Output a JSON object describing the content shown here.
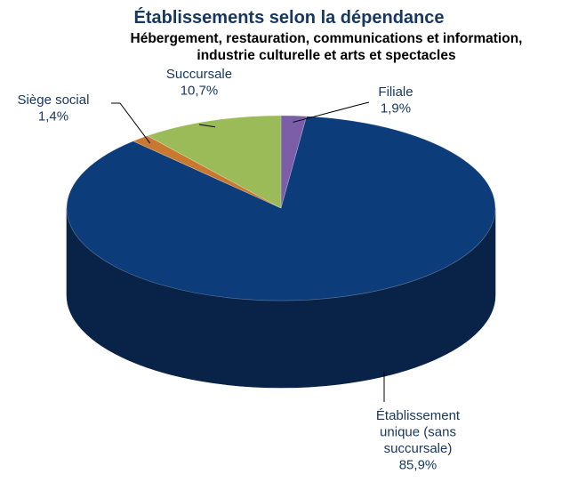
{
  "chart_data": {
    "type": "pie",
    "title": "Établissements selon la dépendance",
    "subtitle_lines": [
      "Hébergement, restauration, communications et information,",
      "industrie culturelle et arts et spectacles"
    ],
    "slices": [
      {
        "name_lines": [
          "Filiale"
        ],
        "value": 1.9,
        "value_label": "1,9%",
        "color": "#7B5EA7",
        "side_color": "#4E3A6E"
      },
      {
        "name_lines": [
          "Établissement",
          "unique (sans",
          "succursale)"
        ],
        "value": 85.9,
        "value_label": "85,9%",
        "color": "#0D3C7A",
        "side_color": "#082347"
      },
      {
        "name_lines": [
          "Siège social"
        ],
        "value": 1.4,
        "value_label": "1,4%",
        "color": "#C9782F",
        "side_color": "#8A4F1C"
      },
      {
        "name_lines": [
          "Succursale"
        ],
        "value": 10.7,
        "value_label": "10,7%",
        "color": "#9BBB59",
        "side_color": "#6A8439"
      }
    ],
    "start_at": "top",
    "direction": "clockwise",
    "style": "3d-tilted",
    "legend": "none",
    "label_color": "#17375E"
  }
}
